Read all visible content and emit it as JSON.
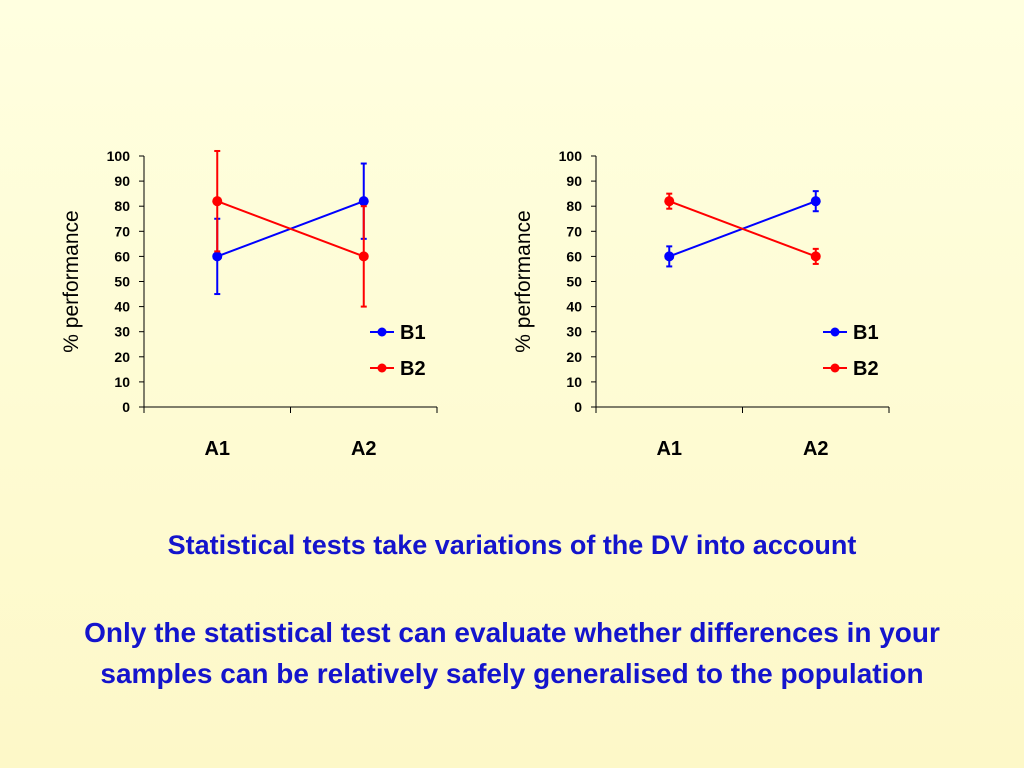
{
  "chart_data": [
    {
      "type": "line",
      "title": "",
      "ylabel": "% performance",
      "xlabel": "",
      "categories": [
        "A1",
        "A2"
      ],
      "ylim": [
        0,
        100
      ],
      "yticks": [
        0,
        10,
        20,
        30,
        40,
        50,
        60,
        70,
        80,
        90,
        100
      ],
      "legend": "right",
      "series": [
        {
          "name": "B1",
          "color": "#0000FF",
          "values": [
            60,
            82
          ],
          "error": [
            15,
            15
          ]
        },
        {
          "name": "B2",
          "color": "#FF0000",
          "values": [
            82,
            60
          ],
          "error": [
            20,
            20
          ]
        }
      ]
    },
    {
      "type": "line",
      "title": "",
      "ylabel": "% performance",
      "xlabel": "",
      "categories": [
        "A1",
        "A2"
      ],
      "ylim": [
        0,
        100
      ],
      "yticks": [
        0,
        10,
        20,
        30,
        40,
        50,
        60,
        70,
        80,
        90,
        100
      ],
      "legend": "right",
      "series": [
        {
          "name": "B1",
          "color": "#0000FF",
          "values": [
            60,
            82
          ],
          "error": [
            4,
            4
          ]
        },
        {
          "name": "B2",
          "color": "#FF0000",
          "values": [
            82,
            60
          ],
          "error": [
            3,
            3
          ]
        }
      ]
    }
  ],
  "text": {
    "caption1": "Statistical tests take variations of the DV into account",
    "caption2": "Only the statistical test can evaluate whether differences in your samples can be relatively safely generalised to the population"
  }
}
